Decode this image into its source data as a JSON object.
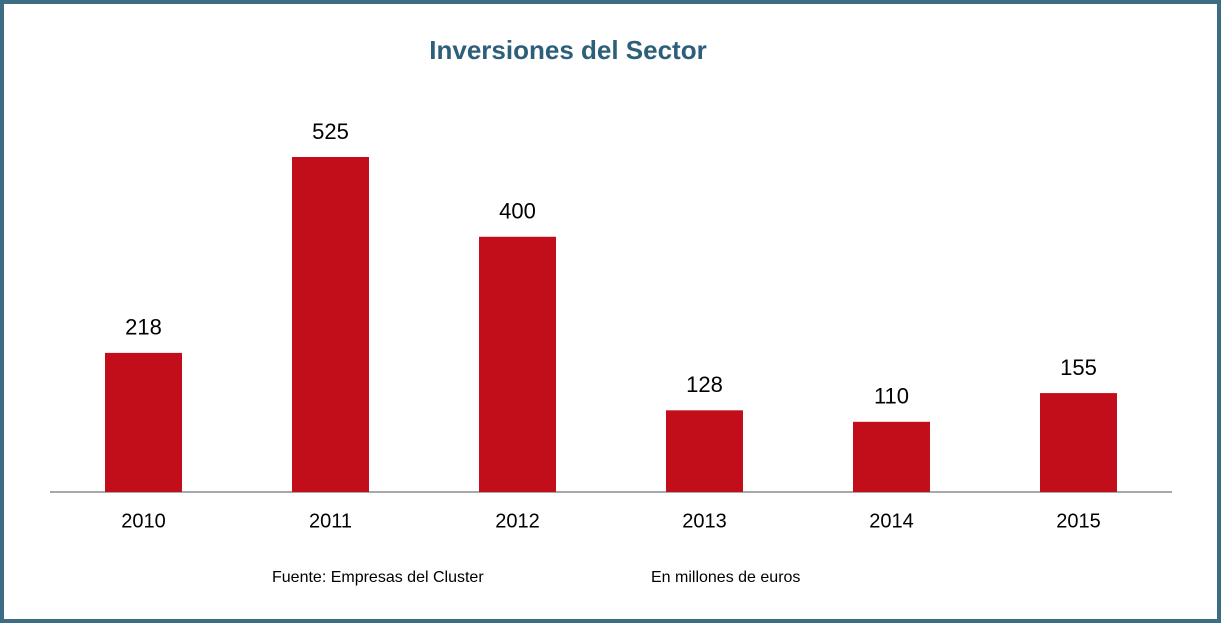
{
  "chart_data": {
    "type": "bar",
    "title": "Inversiones del Sector",
    "categories": [
      "2010",
      "2011",
      "2012",
      "2013",
      "2014",
      "2015"
    ],
    "values": [
      218,
      525,
      400,
      128,
      110,
      155
    ],
    "color": "#c20e1a",
    "source": "Fuente: Empresas del Cluster",
    "note": "En millones de euros"
  }
}
